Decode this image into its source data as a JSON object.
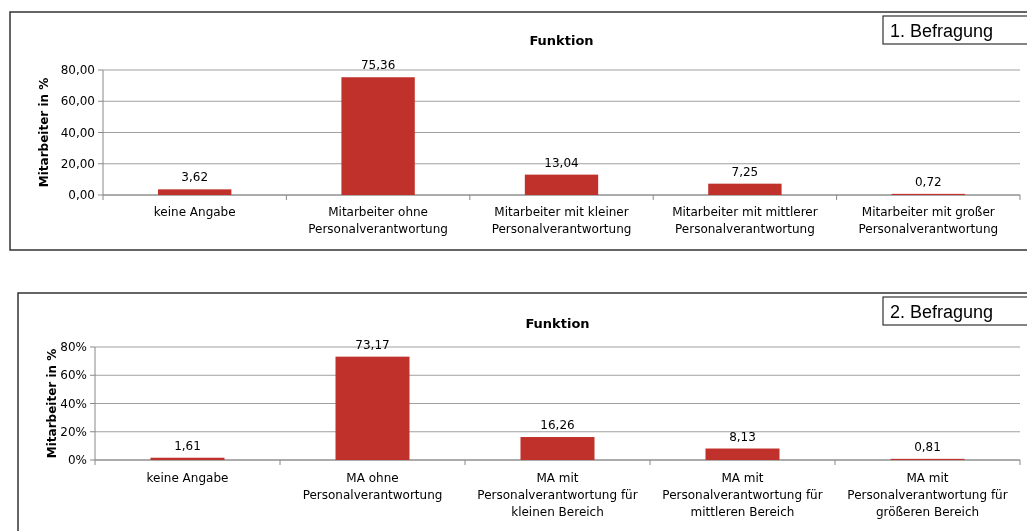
{
  "chart_data": [
    {
      "type": "bar",
      "title": "Funktion",
      "ylabel": "Mitarbeiter in %",
      "annotations": [
        "1. Befragung"
      ],
      "categories": [
        "keine Angabe",
        "Mitarbeiter ohne Personalverantwortung",
        "Mitarbeiter mit kleiner Personalverantwortung",
        "Mitarbeiter mit mittlerer Personalverantwortung",
        "Mitarbeiter mit großer Personalverantwortung"
      ],
      "values": [
        3.62,
        75.36,
        13.04,
        7.25,
        0.72
      ],
      "value_labels": [
        "3,62",
        "75,36",
        "13,04",
        "7,25",
        "0,72"
      ],
      "color": "#c0312b",
      "ylim": [
        0,
        80
      ],
      "yticks": [
        {
          "value": 0,
          "label": "0,00"
        },
        {
          "value": 20,
          "label": "20,00"
        },
        {
          "value": 40,
          "label": "40,00"
        },
        {
          "value": 60,
          "label": "60,00"
        },
        {
          "value": 80,
          "label": "80,00"
        }
      ],
      "grid": "y"
    },
    {
      "type": "bar",
      "title": "Funktion",
      "ylabel": "Mitarbeiter in %",
      "annotations": [
        "2. Befragung"
      ],
      "categories": [
        "keine Angabe",
        "MA ohne Personalverantwortung",
        "MA mit Personalverantwortung für kleinen Bereich",
        "MA mit Personalverantwortung für mittleren Bereich",
        "MA mit Personalverantwortung für größeren Bereich"
      ],
      "values": [
        1.61,
        73.17,
        16.26,
        8.13,
        0.81
      ],
      "value_labels": [
        "1,61",
        "73,17",
        "16,26",
        "8,13",
        "0,81"
      ],
      "color": "#c0312b",
      "ylim": [
        0,
        80
      ],
      "yticks": [
        {
          "value": 0,
          "label": "0%"
        },
        {
          "value": 20,
          "label": "20%"
        },
        {
          "value": 40,
          "label": "40%"
        },
        {
          "value": 60,
          "label": "60%"
        },
        {
          "value": 80,
          "label": "80%"
        }
      ],
      "grid": "y"
    }
  ]
}
